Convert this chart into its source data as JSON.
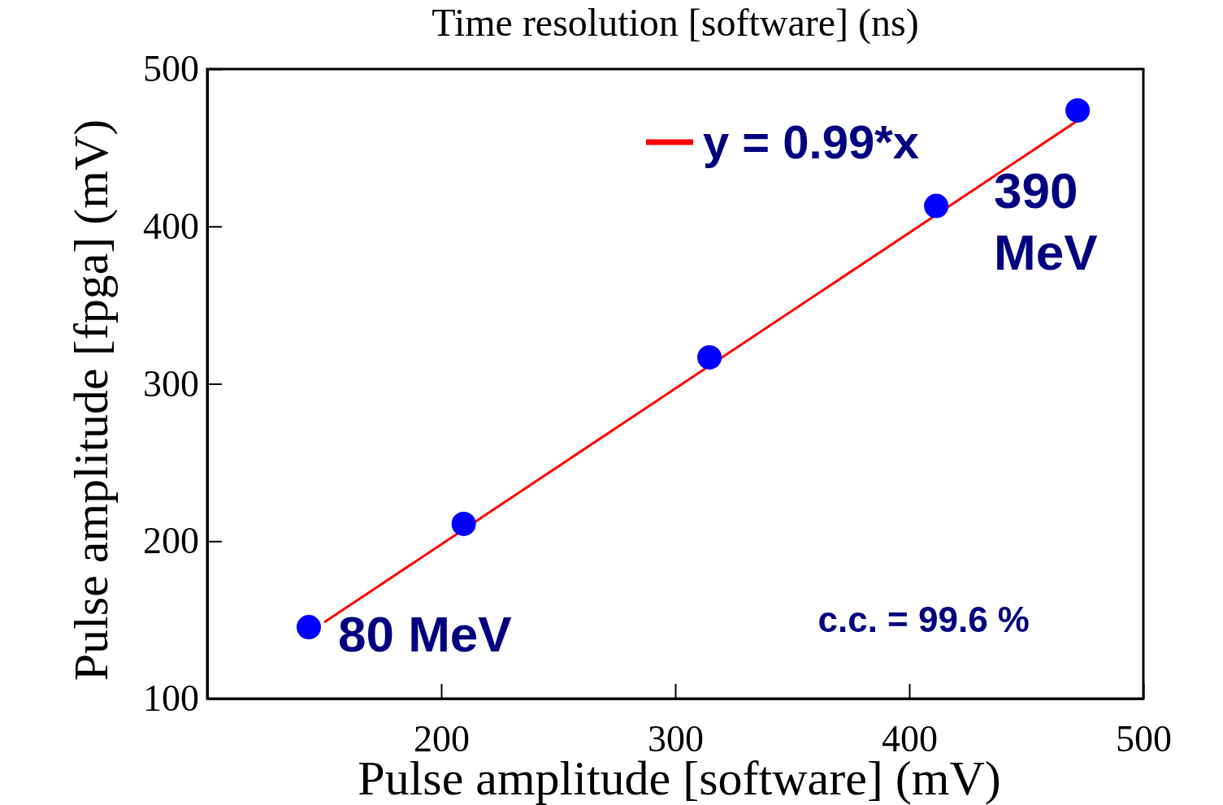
{
  "chart_data": {
    "type": "scatter",
    "title": "Time resolution [software] (ns)",
    "xlabel": "Pulse amplitude [software] (mV)",
    "ylabel": "Pulse amplitude [fpga] (mV)",
    "xlim": [
      100,
      500
    ],
    "ylim": [
      100,
      500
    ],
    "xticks": [
      200,
      300,
      400,
      500
    ],
    "yticks": [
      100,
      200,
      300,
      400,
      500
    ],
    "legend": "top right",
    "series": [
      {
        "color": "#0000ff",
        "marker": "circle",
        "x": [
          143.4,
          209.6,
          314.6,
          411.5,
          471.9
        ],
        "values": [
          145.4,
          211,
          316.8,
          413,
          473.7
        ]
      },
      {
        "type": "line",
        "name": "y = 0.99*x",
        "color": "#ff0000",
        "line_style": "solid",
        "x": [
          150,
          472
        ],
        "values": [
          148.5,
          467.3
        ]
      }
    ],
    "annotations": [
      {
        "text": "80 MeV",
        "x": 143.4,
        "y": 145.4
      },
      {
        "text": "390 MeV",
        "x": 471.9,
        "y": 473.7
      },
      "c.c. = 99.6 %"
    ]
  }
}
